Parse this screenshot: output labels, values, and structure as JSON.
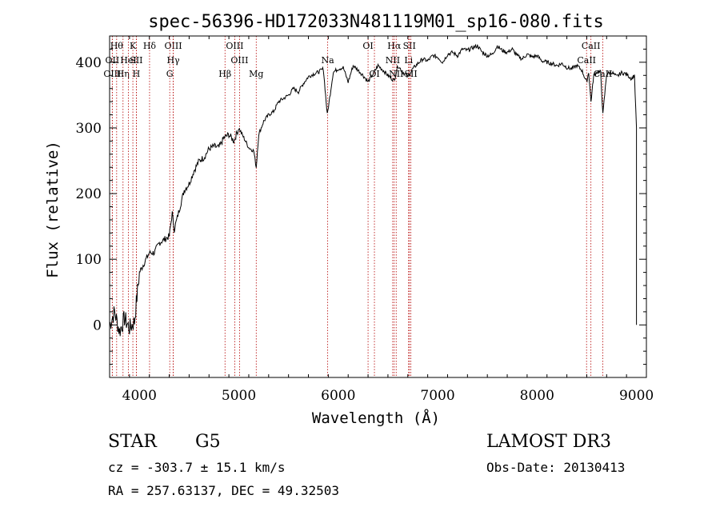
{
  "chart_data": {
    "type": "line",
    "title": "spec-56396-HD172033N481119M01_sp16-080.fits",
    "xlabel": "Wavelength (Å)",
    "ylabel": "Flux (relative)",
    "xlim": [
      3700,
      9100
    ],
    "ylim": [
      -80,
      440
    ],
    "xticks": [
      4000,
      5000,
      6000,
      7000,
      8000,
      9000
    ],
    "yticks": [
      0,
      100,
      200,
      300,
      400
    ],
    "series": [
      {
        "name": "spectrum",
        "x": [
          3700,
          3750,
          3800,
          3850,
          3900,
          3950,
          4000,
          4050,
          4100,
          4150,
          4200,
          4250,
          4300,
          4330,
          4350,
          4400,
          4450,
          4500,
          4550,
          4600,
          4650,
          4700,
          4750,
          4800,
          4850,
          4900,
          4950,
          5000,
          5050,
          5100,
          5150,
          5175,
          5200,
          5250,
          5300,
          5350,
          5400,
          5450,
          5500,
          5550,
          5600,
          5650,
          5700,
          5750,
          5800,
          5850,
          5890,
          5950,
          6000,
          6050,
          6100,
          6150,
          6200,
          6250,
          6300,
          6350,
          6400,
          6450,
          6500,
          6563,
          6600,
          6650,
          6700,
          6750,
          6800,
          6850,
          6900,
          6950,
          7000,
          7050,
          7100,
          7150,
          7200,
          7250,
          7300,
          7350,
          7400,
          7450,
          7500,
          7550,
          7600,
          7650,
          7700,
          7750,
          7800,
          7850,
          7900,
          7950,
          8000,
          8050,
          8100,
          8150,
          8200,
          8250,
          8300,
          8350,
          8400,
          8450,
          8498,
          8520,
          8542,
          8570,
          8600,
          8640,
          8662,
          8700,
          8750,
          8800,
          8850,
          8900,
          8950,
          8980,
          9000
        ],
        "y": [
          0,
          20,
          -10,
          10,
          -5,
          5,
          80,
          95,
          110,
          110,
          125,
          130,
          135,
          170,
          145,
          175,
          205,
          215,
          235,
          250,
          255,
          268,
          272,
          270,
          285,
          290,
          280,
          300,
          285,
          270,
          265,
          240,
          290,
          310,
          320,
          325,
          340,
          345,
          350,
          360,
          355,
          368,
          378,
          382,
          385,
          390,
          320,
          385,
          390,
          392,
          370,
          395,
          388,
          380,
          370,
          382,
          395,
          388,
          380,
          372,
          395,
          385,
          378,
          390,
          398,
          405,
          402,
          410,
          408,
          400,
          412,
          415,
          410,
          420,
          418,
          422,
          425,
          415,
          410,
          412,
          425,
          418,
          415,
          420,
          410,
          405,
          412,
          408,
          410,
          402,
          400,
          398,
          395,
          398,
          392,
          390,
          395,
          388,
          370,
          385,
          340,
          380,
          385,
          385,
          320,
          382,
          385,
          378,
          384,
          382,
          375,
          380,
          300
        ]
      }
    ],
    "lines": [
      {
        "label": "OII",
        "x": 3727,
        "row": 1
      },
      {
        "label": "OIII",
        "x": 3727,
        "row": 2
      },
      {
        "label": "Hθ",
        "x": 3771,
        "row": 0
      },
      {
        "label": "Hη",
        "x": 3835,
        "row": 2
      },
      {
        "label": "HeI",
        "x": 3889,
        "row": 1
      },
      {
        "label": "K",
        "x": 3934,
        "row": 0
      },
      {
        "label": "SII",
        "x": 3969,
        "row": 1
      },
      {
        "label": "H",
        "x": 3969,
        "row": 2
      },
      {
        "label": "Hδ",
        "x": 4102,
        "row": 0
      },
      {
        "label": "OIII",
        "x": 4340,
        "row": 0
      },
      {
        "label": "Hγ",
        "x": 4340,
        "row": 1
      },
      {
        "label": "G",
        "x": 4305,
        "row": 2
      },
      {
        "label": "Hβ",
        "x": 4861,
        "row": 2
      },
      {
        "label": "OIII",
        "x": 4959,
        "row": 0
      },
      {
        "label": "OIII",
        "x": 5007,
        "row": 1
      },
      {
        "label": "Mg",
        "x": 5175,
        "row": 2
      },
      {
        "label": "Na",
        "x": 5894,
        "row": 1
      },
      {
        "label": "OI",
        "x": 6300,
        "row": 0
      },
      {
        "label": "OI",
        "x": 6364,
        "row": 2
      },
      {
        "label": "Hα",
        "x": 6563,
        "row": 0
      },
      {
        "label": "NII",
        "x": 6548,
        "row": 1
      },
      {
        "label": "NII",
        "x": 6583,
        "row": 2
      },
      {
        "label": "SII",
        "x": 6716,
        "row": 0
      },
      {
        "label": "Li",
        "x": 6708,
        "row": 1
      },
      {
        "label": "SII",
        "x": 6731,
        "row": 2
      },
      {
        "label": "CaII",
        "x": 8542,
        "row": 0
      },
      {
        "label": "CaII",
        "x": 8498,
        "row": 1
      },
      {
        "label": "CaII",
        "x": 8662,
        "row": 2
      }
    ]
  },
  "info": {
    "class": "STAR",
    "subclass": "G5",
    "survey": "LAMOST DR3",
    "cz": "cz = -303.7 ± 15.1 km/s",
    "obs_date": "Obs-Date: 20130413",
    "radec": "RA = 257.63137, DEC =  49.32503"
  }
}
